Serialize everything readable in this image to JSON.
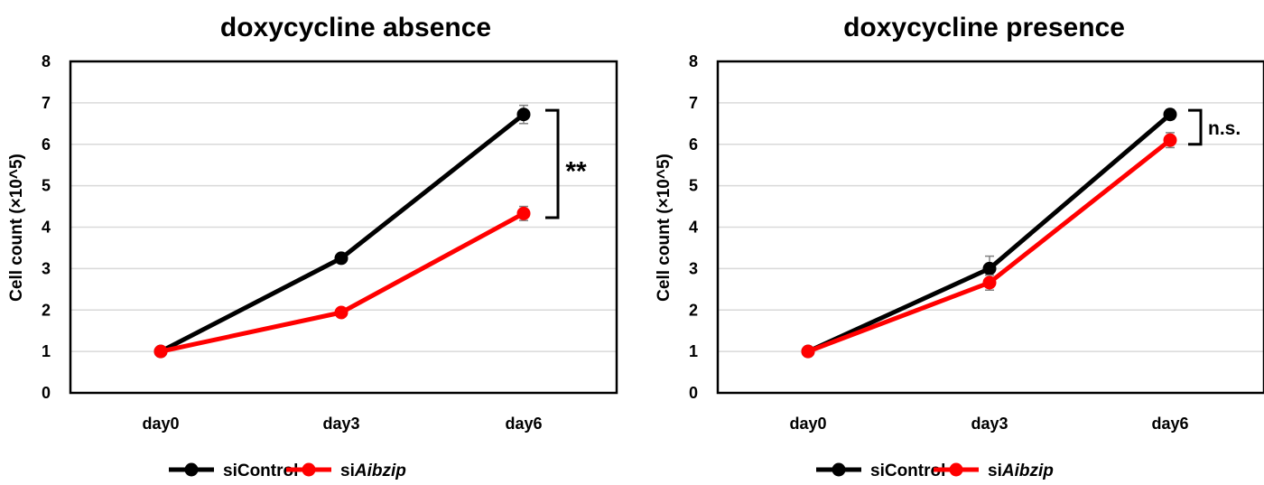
{
  "colors": {
    "siControl": "#000000",
    "siAibzip": "#ff0000",
    "grid": "#d9d9d9",
    "errorbar": "#808080"
  },
  "chart_data": [
    {
      "type": "line",
      "title": "doxycycline absence",
      "xlabel": "",
      "ylabel": "Cell count (×10^5)",
      "categories": [
        "day0",
        "day3",
        "day6"
      ],
      "ylim": [
        0,
        8
      ],
      "yticks": [
        "0",
        "1",
        "2",
        "3",
        "4",
        "5",
        "6",
        "7",
        "8"
      ],
      "grid": true,
      "legend": "bottom",
      "series": [
        {
          "name": "siControl",
          "legend_prefix": "siControl",
          "legend_italic": "",
          "values": [
            1.0,
            3.25,
            6.72
          ],
          "errors": [
            0.03,
            0.06,
            0.22
          ]
        },
        {
          "name": "siAibzip",
          "legend_prefix": "si",
          "legend_italic": "Aibzip",
          "values": [
            1.0,
            1.94,
            4.33
          ],
          "errors": [
            0.03,
            0.05,
            0.17
          ]
        }
      ],
      "annotation": {
        "text": "**",
        "from": 6.72,
        "to": 4.33
      }
    },
    {
      "type": "line",
      "title": "doxycycline presence",
      "xlabel": "",
      "ylabel": "Cell count (×10^5)",
      "categories": [
        "day0",
        "day3",
        "day6"
      ],
      "ylim": [
        0,
        8
      ],
      "yticks": [
        "0",
        "1",
        "2",
        "3",
        "4",
        "5",
        "6",
        "7",
        "8"
      ],
      "grid": true,
      "legend": "bottom",
      "series": [
        {
          "name": "siControl",
          "legend_prefix": "siControl",
          "legend_italic": "",
          "values": [
            1.0,
            3.0,
            6.72
          ],
          "errors": [
            0.03,
            0.3,
            0.12
          ]
        },
        {
          "name": "siAibzip",
          "legend_prefix": "si",
          "legend_italic": "Aibzip",
          "values": [
            1.0,
            2.66,
            6.1
          ],
          "errors": [
            0.03,
            0.18,
            0.18
          ]
        }
      ],
      "annotation": {
        "text": "n.s.",
        "from": 6.72,
        "to": 6.1
      }
    }
  ]
}
